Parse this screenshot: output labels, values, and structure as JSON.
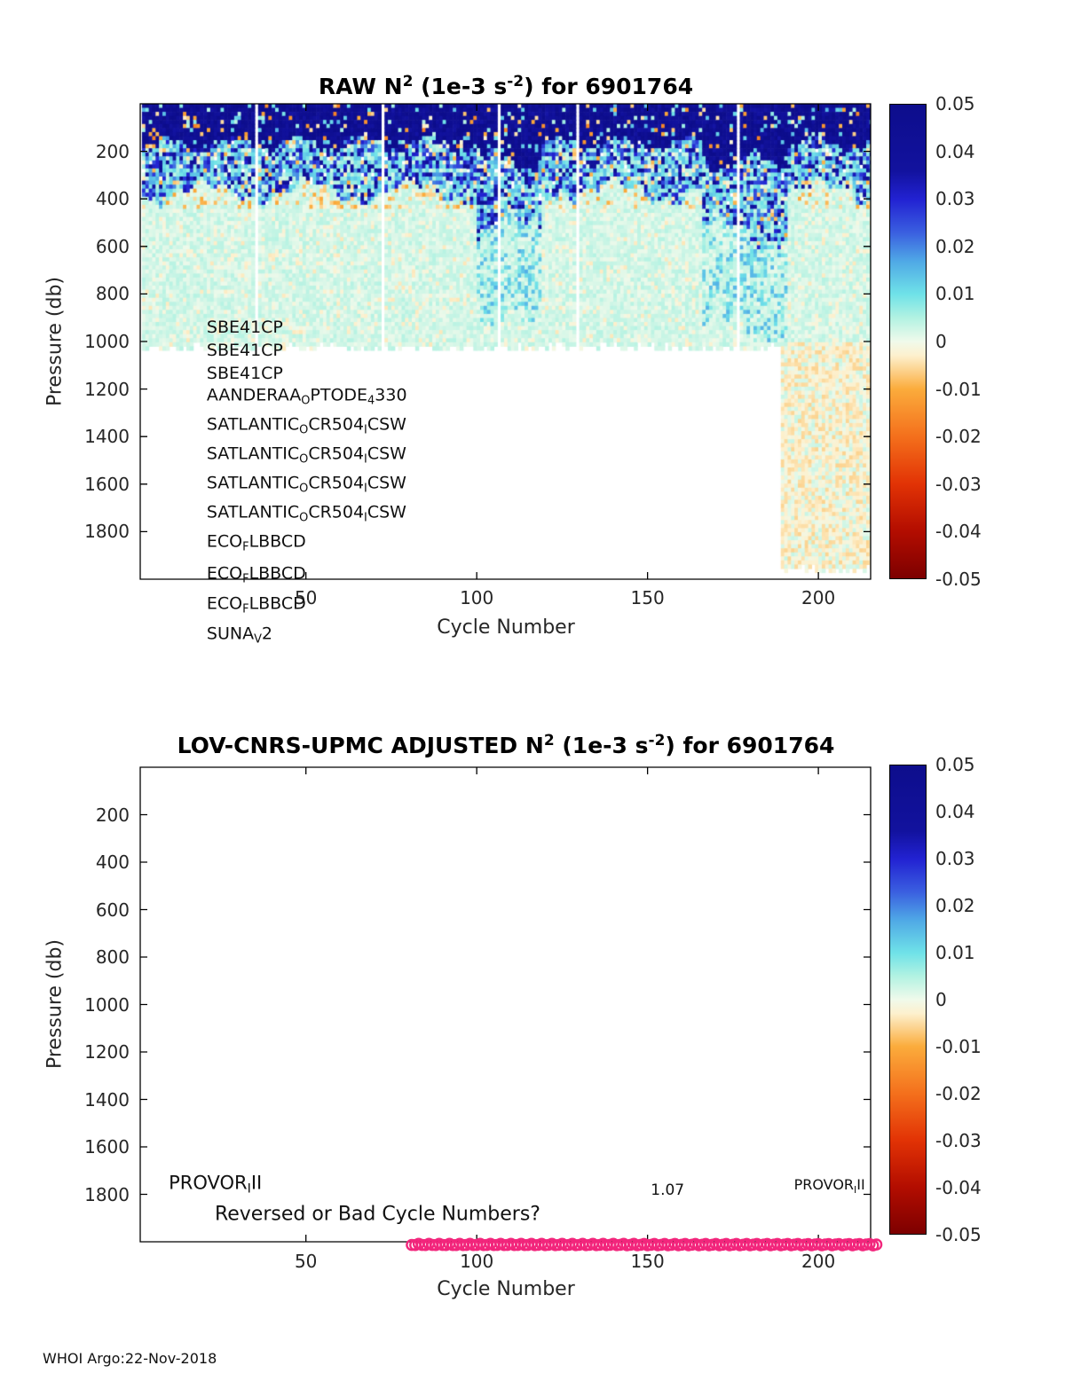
{
  "footer": "WHOI Argo:22-Nov-2018",
  "palette": {
    "axis_color": "#000000",
    "tick_text_color": "#262626",
    "annotation_color": "#111111",
    "marker_pink": "#f2267c",
    "colorbar_stops": [
      {
        "p": 0,
        "c": "#0d0d8c"
      },
      {
        "p": 14,
        "c": "#12129e"
      },
      {
        "p": 20,
        "c": "#2222d2"
      },
      {
        "p": 27,
        "c": "#3a5fe0"
      },
      {
        "p": 33,
        "c": "#4fa8e6"
      },
      {
        "p": 40,
        "c": "#6fe2e8"
      },
      {
        "p": 45,
        "c": "#b2f2e2"
      },
      {
        "p": 50,
        "c": "#f0faeb"
      },
      {
        "p": 53,
        "c": "#fdf0cd"
      },
      {
        "p": 60,
        "c": "#fbac3c"
      },
      {
        "p": 70,
        "c": "#f4701c"
      },
      {
        "p": 80,
        "c": "#e23305"
      },
      {
        "p": 90,
        "c": "#b30d00"
      },
      {
        "p": 100,
        "c": "#7d0000"
      }
    ]
  },
  "chart_data": [
    {
      "type": "heatmap",
      "title_segments": [
        {
          "t": "RAW N"
        },
        {
          "t": "2",
          "sup": true
        },
        {
          "t": " (1e-3 s"
        },
        {
          "t": "-2",
          "sup": true
        },
        {
          "t": ") for 6901764"
        }
      ],
      "xlabel": "Cycle Number",
      "ylabel": "Pressure (db)",
      "xticks": [
        50,
        100,
        150,
        200
      ],
      "yticks": [
        200,
        400,
        600,
        800,
        1000,
        1200,
        1400,
        1600,
        1800
      ],
      "xlim": [
        1.5,
        215.3
      ],
      "ylim_pressure": [
        0,
        2000
      ],
      "grid": false,
      "colorbar": {
        "lim": [
          -0.05,
          0.05
        ],
        "ticks": [
          "0.05",
          "0.04",
          "0.03",
          "0.02",
          "0.01",
          "0",
          "-0.01",
          "-0.02",
          "-0.03",
          "-0.04",
          "-0.05"
        ]
      },
      "sensor_annotations": [
        {
          "fy": 0.47,
          "segments": [
            {
              "t": "SBE41CP"
            }
          ]
        },
        {
          "fy": 0.519,
          "segments": [
            {
              "t": "SBE41CP"
            }
          ]
        },
        {
          "fy": 0.567,
          "segments": [
            {
              "t": "SBE41CP"
            }
          ]
        },
        {
          "fy": 0.616,
          "segments": [
            {
              "t": "AANDERAA"
            },
            {
              "t": "O",
              "sub": true
            },
            {
              "t": "PTODE"
            },
            {
              "t": "4",
              "sub": true
            },
            {
              "t": "330"
            }
          ]
        },
        {
          "fy": 0.677,
          "segments": [
            {
              "t": "SATLANTIC"
            },
            {
              "t": "O",
              "sub": true
            },
            {
              "t": "CR504"
            },
            {
              "t": "I",
              "sub": true
            },
            {
              "t": "CSW"
            }
          ]
        },
        {
          "fy": 0.739,
          "segments": [
            {
              "t": "SATLANTIC"
            },
            {
              "t": "O",
              "sub": true
            },
            {
              "t": "CR504"
            },
            {
              "t": "I",
              "sub": true
            },
            {
              "t": "CSW"
            }
          ]
        },
        {
          "fy": 0.8,
          "segments": [
            {
              "t": "SATLANTIC"
            },
            {
              "t": "O",
              "sub": true
            },
            {
              "t": "CR504"
            },
            {
              "t": "I",
              "sub": true
            },
            {
              "t": "CSW"
            }
          ]
        },
        {
          "fy": 0.862,
          "segments": [
            {
              "t": "SATLANTIC"
            },
            {
              "t": "O",
              "sub": true
            },
            {
              "t": "CR504"
            },
            {
              "t": "I",
              "sub": true
            },
            {
              "t": "CSW"
            }
          ]
        },
        {
          "fy": 0.924,
          "segments": [
            {
              "t": "ECO"
            },
            {
              "t": "F",
              "sub": true
            },
            {
              "t": "LBBCD"
            }
          ]
        },
        {
          "fy": 0.991,
          "segments": [
            {
              "t": "ECO"
            },
            {
              "t": "F",
              "sub": true
            },
            {
              "t": "LBBCD"
            }
          ]
        },
        {
          "fy": 1.054,
          "segments": [
            {
              "t": "ECO"
            },
            {
              "t": "F",
              "sub": true
            },
            {
              "t": "LBBCD"
            }
          ]
        },
        {
          "fy": 1.118,
          "segments": [
            {
              "t": "SUNA"
            },
            {
              "t": "V",
              "sub": true
            },
            {
              "t": "2"
            }
          ]
        }
      ],
      "sensor_annotation_fx": 0.091,
      "field": {
        "cycle_range": [
          2,
          215
        ],
        "shallow_profile_max_db": 1010,
        "deep_profile_max_db": 1945,
        "deep_cycles_start": 189,
        "surface_layer_db": [
          120,
          200
        ],
        "surface_value_range": [
          0.035,
          0.055
        ],
        "pycnocline_db": [
          300,
          430
        ],
        "pycnocline_value_range": [
          0.005,
          0.045
        ],
        "interior_value_range": [
          0,
          0.005
        ],
        "deep_value_range": [
          -0.006,
          -0.001
        ],
        "negative_speckle_band_db": [
          300,
          430
        ],
        "enhanced_cycle_bands": [
          [
            100,
            118
          ],
          [
            166,
            190
          ]
        ],
        "missing_cycles": [
          35,
          72,
          106,
          129,
          176
        ]
      }
    },
    {
      "type": "scatter",
      "title_segments": [
        {
          "t": "LOV-CNRS-UPMC  ADJUSTED N"
        },
        {
          "t": "2",
          "sup": true
        },
        {
          "t": " (1e-3 s"
        },
        {
          "t": "-2",
          "sup": true
        },
        {
          "t": ") for 6901764"
        }
      ],
      "xlabel": "Cycle Number",
      "ylabel": "Pressure (db)",
      "xticks": [
        50,
        100,
        150,
        200
      ],
      "yticks": [
        200,
        400,
        600,
        800,
        1000,
        1200,
        1400,
        1600,
        1800
      ],
      "xlim": [
        1.5,
        215.3
      ],
      "ylim_pressure": [
        0,
        2000
      ],
      "grid": false,
      "colorbar": {
        "lim": [
          -0.05,
          0.05
        ],
        "ticks": [
          "0.05",
          "0.04",
          "0.03",
          "0.02",
          "0.01",
          "0",
          "-0.01",
          "-0.02",
          "-0.03",
          "-0.04",
          "-0.05"
        ]
      },
      "annotations": [
        {
          "name": "float-model-left",
          "fx": 0.039,
          "fy": 0.879,
          "size": 21,
          "segments": [
            {
              "t": "PROVOR"
            },
            {
              "t": "I",
              "sub": true
            },
            {
              "t": "II"
            }
          ]
        },
        {
          "name": "value-label",
          "fx": 0.699,
          "fy": 0.892,
          "size": 17,
          "segments": [
            {
              "t": "1.07"
            }
          ]
        },
        {
          "name": "float-model-right",
          "fx": 0.895,
          "fy": 0.882,
          "size": 16,
          "segments": [
            {
              "t": "PROVOR"
            },
            {
              "t": "I",
              "sub": true
            },
            {
              "t": "II"
            }
          ]
        },
        {
          "name": "bad-cycles-question",
          "fx": 0.102,
          "fy": 0.942,
          "size": 22,
          "segments": [
            {
              "t": "Reversed or Bad Cycle Numbers?"
            }
          ]
        }
      ],
      "series": [
        {
          "name": "flagged cycle markers",
          "marker": "open-circle",
          "color": "#f2267c",
          "cycle_start": 81,
          "cycle_end": 217,
          "pressure_frac": 1.006,
          "radius": 5.6
        }
      ]
    }
  ]
}
